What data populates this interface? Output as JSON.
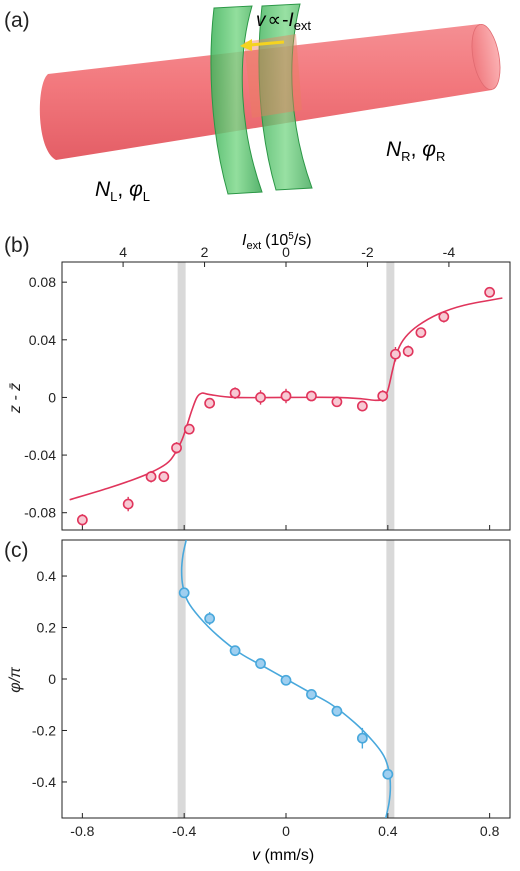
{
  "panel_a": {
    "label": "(a)",
    "velocity_label": {
      "v": "v",
      "prop": "∝",
      "minus": "-",
      "I": "I",
      "sub": "ext"
    },
    "left_label": {
      "N": "N",
      "N_sub": "L",
      "sep": ", ",
      "phi": "φ",
      "phi_sub": "L"
    },
    "right_label": {
      "N": "N",
      "N_sub": "R",
      "sep": ", ",
      "phi": "φ",
      "phi_sub": "R"
    },
    "colors": {
      "cylinder": "#f07a7f",
      "barrier": "#53c86a",
      "arrow": "#f5d320"
    }
  },
  "panel_b": {
    "label": "(b)"
  },
  "panel_c": {
    "label": "(c)"
  },
  "chart_data": [
    {
      "type": "scatter",
      "panel": "(b)",
      "ylabel": "z - z̄",
      "top_xlabel": {
        "I": "I",
        "sub": "ext",
        "unit": "(10",
        "exp": "5",
        "unit_end": "/s)"
      },
      "xlim": [
        -0.88,
        0.88
      ],
      "ylim": [
        -0.092,
        0.094
      ],
      "x_ticks": [
        "-0.8",
        "-0.4",
        "0",
        "0.4",
        "0.8"
      ],
      "x_tick_values": [
        -0.8,
        -0.4,
        0,
        0.4,
        0.8
      ],
      "y_ticks": [
        "-0.08",
        "-0.04",
        "0",
        "0.04",
        "0.08"
      ],
      "y_tick_values": [
        -0.08,
        -0.04,
        0,
        0.04,
        0.08
      ],
      "top_ticks": [
        "4",
        "2",
        "0",
        "-2",
        "-4"
      ],
      "top_tick_positions": [
        -0.64,
        -0.32,
        0,
        0.32,
        0.64
      ],
      "shaded_bands": [
        -0.41,
        0.41
      ],
      "color": "#e0355c",
      "points": [
        {
          "x": -0.8,
          "y": -0.085,
          "err": 0.004
        },
        {
          "x": -0.62,
          "y": -0.074,
          "err": 0.005
        },
        {
          "x": -0.53,
          "y": -0.055,
          "err": 0.004
        },
        {
          "x": -0.48,
          "y": -0.055,
          "err": 0.003
        },
        {
          "x": -0.43,
          "y": -0.035,
          "err": 0.004
        },
        {
          "x": -0.38,
          "y": -0.022,
          "err": 0.003
        },
        {
          "x": -0.3,
          "y": -0.004,
          "err": 0.003
        },
        {
          "x": -0.2,
          "y": 0.003,
          "err": 0.004
        },
        {
          "x": -0.1,
          "y": 0.0,
          "err": 0.005
        },
        {
          "x": 0.0,
          "y": 0.001,
          "err": 0.005
        },
        {
          "x": 0.1,
          "y": 0.001,
          "err": 0.003
        },
        {
          "x": 0.2,
          "y": -0.003,
          "err": 0.003
        },
        {
          "x": 0.3,
          "y": -0.006,
          "err": 0.003
        },
        {
          "x": 0.38,
          "y": 0.001,
          "err": 0.004
        },
        {
          "x": 0.43,
          "y": 0.03,
          "err": 0.005
        },
        {
          "x": 0.48,
          "y": 0.032,
          "err": 0.004
        },
        {
          "x": 0.53,
          "y": 0.045,
          "err": 0.003
        },
        {
          "x": 0.62,
          "y": 0.056,
          "err": 0.004
        },
        {
          "x": 0.8,
          "y": 0.073,
          "err": 0.003
        }
      ],
      "fit_curve": [
        [
          -0.85,
          -0.071
        ],
        [
          -0.7,
          -0.063
        ],
        [
          -0.6,
          -0.057
        ],
        [
          -0.53,
          -0.052
        ],
        [
          -0.47,
          -0.046
        ],
        [
          -0.44,
          -0.04
        ],
        [
          -0.41,
          -0.03
        ],
        [
          -0.39,
          -0.02
        ],
        [
          -0.37,
          -0.009
        ],
        [
          -0.35,
          0.0
        ],
        [
          -0.33,
          0.003
        ],
        [
          -0.3,
          0.002
        ],
        [
          -0.2,
          0.0
        ],
        [
          0.0,
          0.0
        ],
        [
          0.2,
          0.0
        ],
        [
          0.3,
          -0.001
        ],
        [
          0.35,
          -0.002
        ],
        [
          0.38,
          -0.001
        ],
        [
          0.4,
          0.005
        ],
        [
          0.42,
          0.02
        ],
        [
          0.44,
          0.033
        ],
        [
          0.47,
          0.042
        ],
        [
          0.52,
          0.05
        ],
        [
          0.6,
          0.058
        ],
        [
          0.7,
          0.064
        ],
        [
          0.85,
          0.069
        ]
      ]
    },
    {
      "type": "scatter",
      "panel": "(c)",
      "xlabel": {
        "v": "v",
        "unit": " (mm/s)"
      },
      "ylabel": "φ/π",
      "xlim": [
        -0.88,
        0.88
      ],
      "ylim": [
        -0.54,
        0.54
      ],
      "x_ticks": [
        "-0.8",
        "-0.4",
        "0",
        "0.4",
        "0.8"
      ],
      "x_tick_values": [
        -0.8,
        -0.4,
        0,
        0.4,
        0.8
      ],
      "y_ticks": [
        "-0.4",
        "-0.2",
        "0",
        "0.2",
        "0.4"
      ],
      "y_tick_values": [
        -0.4,
        -0.2,
        0,
        0.2,
        0.4
      ],
      "shaded_bands": [
        -0.41,
        0.41
      ],
      "color": "#49a8dc",
      "points": [
        {
          "x": -0.4,
          "y": 0.335,
          "err": 0.02
        },
        {
          "x": -0.3,
          "y": 0.235,
          "err": 0.025
        },
        {
          "x": -0.2,
          "y": 0.11,
          "err": 0.01
        },
        {
          "x": -0.1,
          "y": 0.06,
          "err": 0.01
        },
        {
          "x": 0.0,
          "y": -0.005,
          "err": 0.02
        },
        {
          "x": 0.1,
          "y": -0.06,
          "err": 0.01
        },
        {
          "x": 0.2,
          "y": -0.125,
          "err": 0.01
        },
        {
          "x": 0.3,
          "y": -0.23,
          "err": 0.04
        },
        {
          "x": 0.4,
          "y": -0.37,
          "err": 0.02
        }
      ],
      "fit_curve": [
        [
          -0.392,
          0.54
        ],
        [
          -0.405,
          0.48
        ],
        [
          -0.41,
          0.42
        ],
        [
          -0.405,
          0.36
        ],
        [
          -0.385,
          0.3
        ],
        [
          -0.34,
          0.24
        ],
        [
          -0.27,
          0.17
        ],
        [
          -0.18,
          0.1
        ],
        [
          -0.09,
          0.05
        ],
        [
          0.0,
          0.0
        ],
        [
          0.09,
          -0.05
        ],
        [
          0.18,
          -0.1
        ],
        [
          0.27,
          -0.17
        ],
        [
          0.34,
          -0.24
        ],
        [
          0.385,
          -0.3
        ],
        [
          0.405,
          -0.36
        ],
        [
          0.41,
          -0.42
        ],
        [
          0.405,
          -0.48
        ],
        [
          0.392,
          -0.54
        ]
      ]
    }
  ]
}
